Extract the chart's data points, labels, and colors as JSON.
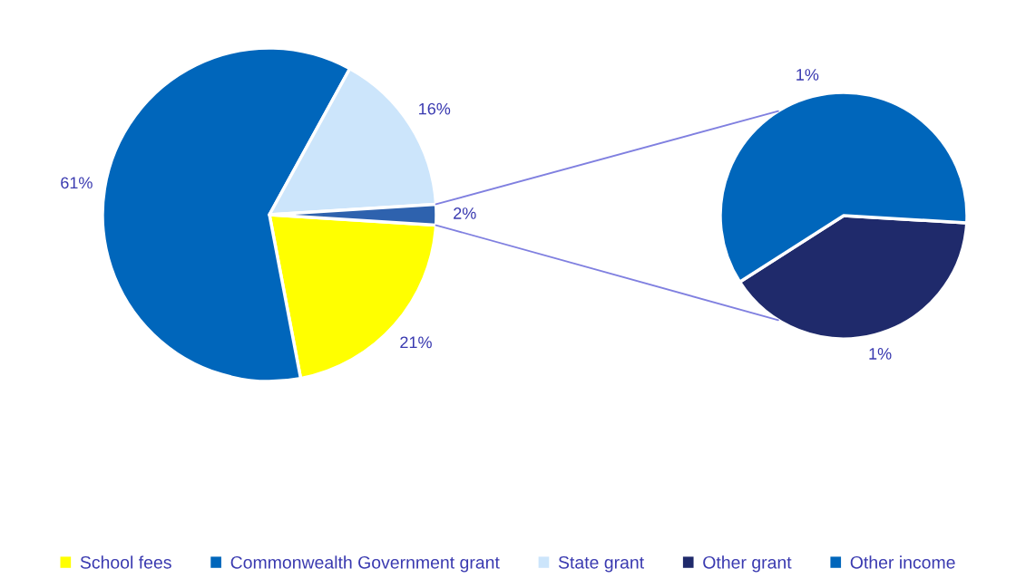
{
  "chart_data": [
    {
      "type": "pie",
      "categories": [
        "School fees",
        "Commonwealth Government grant",
        "State grant",
        null
      ],
      "values": [
        21,
        61,
        16,
        2
      ],
      "colors": [
        "#ffff00",
        "#0066bb",
        "#cce5fb",
        "#2e62ae"
      ],
      "value_labels": [
        "21%",
        "61%",
        "16%",
        "2%"
      ],
      "legend": "bottom"
    },
    {
      "type": "pie",
      "categories": [
        "Other grant",
        "Other income"
      ],
      "values": [
        0.8,
        1.2
      ],
      "colors": [
        "#1f2a6b",
        "#0066bb"
      ],
      "value_labels": [
        "1%",
        "1%"
      ],
      "legend": "bottom"
    }
  ]
}
